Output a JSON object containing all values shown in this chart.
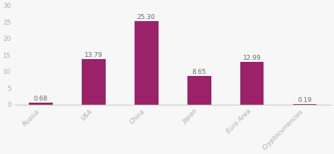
{
  "categories": [
    "Russia",
    "USA",
    "China",
    "Japan",
    "Euro Area",
    "Cryptocurrencies"
  ],
  "values": [
    0.68,
    13.79,
    25.3,
    8.65,
    12.99,
    0.19
  ],
  "bar_color": "#9b2168",
  "background_color": "#f7f7f7",
  "ylim": [
    0,
    30
  ],
  "yticks": [
    0,
    5,
    10,
    15,
    20,
    25,
    30
  ],
  "label_fontsize": 6.5,
  "tick_fontsize": 6.5,
  "bar_width": 0.45,
  "value_color": "#666666",
  "tick_color": "#aaaaaa",
  "spine_color": "#cccccc"
}
